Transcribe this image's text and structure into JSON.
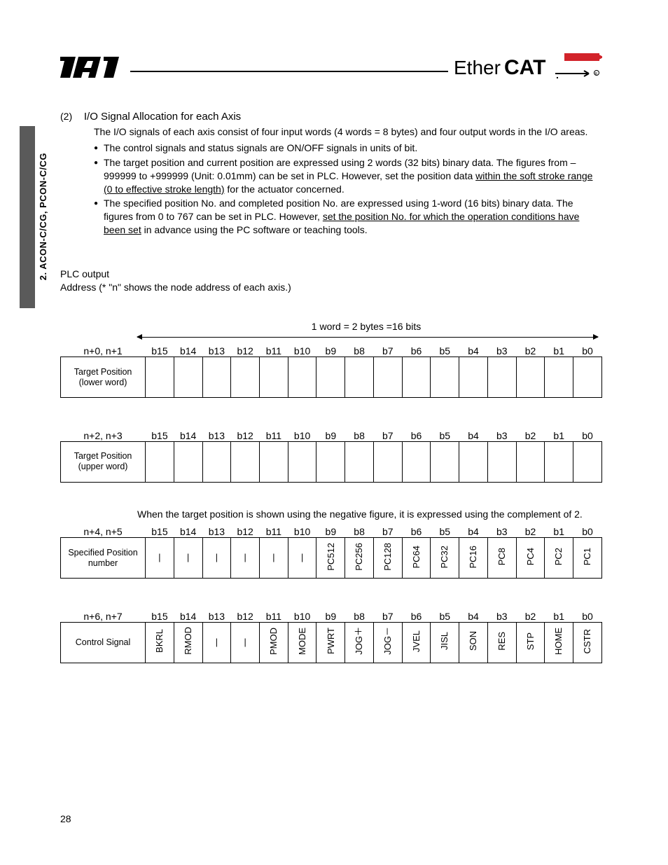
{
  "logos": {
    "iai_text": "IAI",
    "ethercat_text": "EtherCAT."
  },
  "side_label": "2. ACON-C/CG, PCON-C/CG",
  "section": {
    "num": "(2)",
    "title": "I/O Signal Allocation for each Axis",
    "intro": "The I/O signals of each axis consist of four input words (4 words = 8 bytes) and four output words in the I/O areas.",
    "bullets": [
      {
        "pre": "The control signals and status signals are ON/OFF signals in units of bit.",
        "u1": "",
        "mid": "",
        "u2": "",
        "post": ""
      },
      {
        "pre": "The target position and current position are expressed using 2 words (32 bits) binary data. The figures from –999999 to +999999 (Unit: 0.01mm) can be set in PLC. However, set the position data ",
        "u1": "within the soft stroke range (0 to effective stroke length)",
        "mid": " for the actuator concerned.",
        "u2": "",
        "post": ""
      },
      {
        "pre": "The specified position No. and completed position No. are expressed using 1-word (16 bits) binary data. The figures from 0 to 767 can be set in PLC. However, ",
        "u1": "set the position No. for which the operation conditions have been set",
        "mid": " in advance using the PC software or teaching tools.",
        "u2": "",
        "post": ""
      }
    ]
  },
  "plc": {
    "line1": "PLC output",
    "line2": "Address (* \"n\" shows the node address of each axis.)"
  },
  "word_caption": "1 word = 2 bytes =16 bits",
  "bit_headers": [
    "b15",
    "b14",
    "b13",
    "b12",
    "b11",
    "b10",
    "b9",
    "b8",
    "b7",
    "b6",
    "b5",
    "b4",
    "b3",
    "b2",
    "b1",
    "b0"
  ],
  "tables": [
    {
      "addr": "n+0, n+1",
      "row_label": "Target Position (lower word)",
      "cells": [
        "",
        "",
        "",
        "",
        "",
        "",
        "",
        "",
        "",
        "",
        "",
        "",
        "",
        "",
        "",
        ""
      ],
      "vertical": false,
      "show_arrow": true
    },
    {
      "addr": "n+2, n+3",
      "row_label": "Target Position (upper word)",
      "cells": [
        "",
        "",
        "",
        "",
        "",
        "",
        "",
        "",
        "",
        "",
        "",
        "",
        "",
        "",
        "",
        ""
      ],
      "vertical": false,
      "show_arrow": false
    },
    {
      "addr": "n+4, n+5",
      "row_label": "Specified Position number",
      "cells": [
        "|",
        "|",
        "|",
        "|",
        "|",
        "|",
        "PC512",
        "PC256",
        "PC128",
        "PC64",
        "PC32",
        "PC16",
        "PC8",
        "PC4",
        "PC2",
        "PC1"
      ],
      "vertical": true,
      "show_arrow": false
    },
    {
      "addr": "n+6, n+7",
      "row_label": "Control Signal",
      "cells": [
        "BKRL",
        "RMOD",
        "|",
        "|",
        "PMOD",
        "MODE",
        "PWRT",
        "JOG＋",
        "JOG－",
        "JVEL",
        "JISL",
        "SON",
        "RES",
        "STP",
        "HOME",
        "CSTR"
      ],
      "vertical": true,
      "show_arrow": false
    }
  ],
  "note": "When the target position is shown using the negative figure, it is expressed using the complement of 2.",
  "page_number": "28"
}
